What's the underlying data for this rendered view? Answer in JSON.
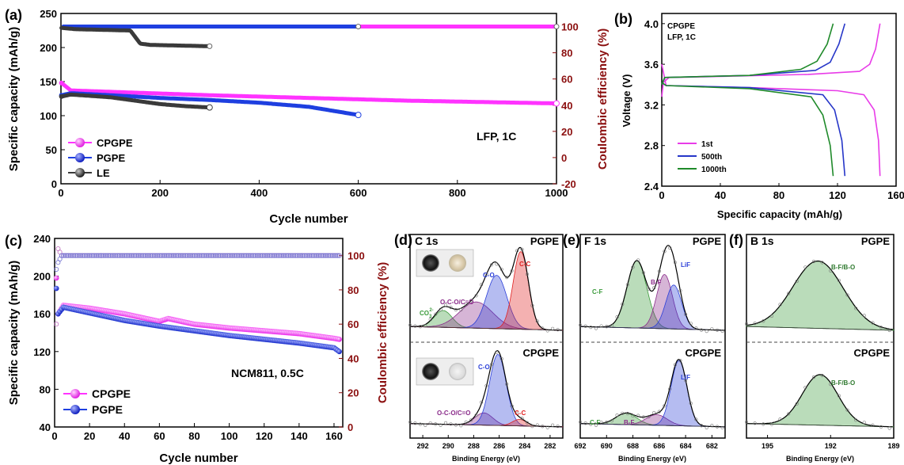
{
  "colors": {
    "cpgpe": "#ff33ff",
    "pgpe": "#1e3fe0",
    "le": "#3a3a3a",
    "right_axis": "#8b0f0f",
    "charge_1st": "#e83ce8",
    "charge_500th": "#2636c8",
    "charge_1000th": "#1f8a2a",
    "xps_green": "#3a9a3a",
    "xps_blue": "#2b3fd8",
    "xps_red": "#e02020",
    "xps_purple": "#8a2b8a"
  },
  "panels": {
    "a": {
      "label": "(a)",
      "xlabel": "Cycle number",
      "ylabel": "Specific capacity (mAh/g)",
      "y2label": "Coulombic efficiency (%)",
      "annotation": "LFP, 1C",
      "xticks": [
        "0",
        "200",
        "400",
        "600",
        "800",
        "1000"
      ],
      "yticks": [
        "0",
        "50",
        "100",
        "150",
        "200",
        "250"
      ],
      "y2ticks": [
        "-20",
        "0",
        "20",
        "40",
        "60",
        "80",
        "100"
      ],
      "legend": [
        "CPGPE",
        "PGPE",
        "LE"
      ]
    },
    "b": {
      "label": "(b)",
      "xlabel": "Specific capacity (mAh/g)",
      "ylabel": "Voltage (V)",
      "annotation_line1": "CPGPE",
      "annotation_line2": "LFP, 1C",
      "xticks": [
        "0",
        "40",
        "80",
        "120",
        "160"
      ],
      "yticks": [
        "2.4",
        "2.8",
        "3.2",
        "3.6",
        "4.0"
      ],
      "legend": [
        "1st",
        "500th",
        "1000th"
      ]
    },
    "c": {
      "label": "(c)",
      "xlabel": "Cycle number",
      "ylabel": "Specific capacity (mAh/g)",
      "y2label": "Coulombic efficiency (%)",
      "annotation": "NCM811, 0.5C",
      "xticks": [
        "0",
        "20",
        "40",
        "60",
        "80",
        "100",
        "120",
        "140",
        "160"
      ],
      "yticks": [
        "40",
        "80",
        "120",
        "160",
        "200",
        "240"
      ],
      "y2ticks": [
        "0",
        "20",
        "40",
        "60",
        "80",
        "100"
      ],
      "legend": [
        "CPGPE",
        "PGPE"
      ]
    },
    "d": {
      "label": "(d)",
      "title": "C 1s",
      "top_sample": "PGPE",
      "bottom_sample": "CPGPE",
      "xlabel": "Binding Energy (eV)",
      "xticks": [
        "292",
        "290",
        "288",
        "286",
        "284",
        "282"
      ],
      "peaks_top": [
        "CO3^2-",
        "O-C-O/C=O",
        "C-O",
        "C-C"
      ],
      "peaks_bottom": [
        "C-O",
        "O-C-O/C=O",
        "C-C"
      ],
      "co3_main": "CO",
      "co3_sub": "3",
      "co3_sup": "2-"
    },
    "e": {
      "label": "(e)",
      "title": "F 1s",
      "top_sample": "PGPE",
      "bottom_sample": "CPGPE",
      "xlabel": "Binding Energy (eV)",
      "xticks": [
        "692",
        "690",
        "688",
        "686",
        "684",
        "682"
      ],
      "peaks_top": [
        "C-F",
        "B-F",
        "LiF"
      ],
      "peaks_bottom": [
        "LiF",
        "C-F",
        "B-F"
      ]
    },
    "f": {
      "label": "(f)",
      "title": "B 1s",
      "top_sample": "PGPE",
      "bottom_sample": "CPGPE",
      "xlabel": "Binding Energy (eV)",
      "xticks": [
        "195",
        "192",
        "189"
      ],
      "peaks_top": [
        "B-F/B-O"
      ],
      "peaks_bottom": [
        "B-F/B-O"
      ]
    }
  },
  "chart_data": [
    {
      "panel": "a",
      "type": "scatter",
      "xlabel": "Cycle number",
      "ylabel": "Specific capacity (mAh/g)",
      "y2label": "Coulombic efficiency (%)",
      "xlim": [
        0,
        1000
      ],
      "ylim": [
        0,
        250
      ],
      "y2lim": [
        -20,
        110
      ],
      "series": [
        {
          "name": "CPGPE",
          "axis": "capacity",
          "x": [
            1,
            20,
            100,
            300,
            500,
            700,
            1000
          ],
          "y": [
            148,
            137,
            135,
            130,
            126,
            122,
            118
          ]
        },
        {
          "name": "PGPE",
          "axis": "capacity",
          "x": [
            1,
            20,
            100,
            200,
            300,
            400,
            500,
            600
          ],
          "y": [
            130,
            133,
            130,
            126,
            123,
            119,
            113,
            101
          ]
        },
        {
          "name": "LE",
          "axis": "capacity",
          "x": [
            1,
            20,
            100,
            150,
            200,
            250,
            300
          ],
          "y": [
            128,
            131,
            127,
            122,
            117,
            114,
            112
          ]
        },
        {
          "name": "CPGPE",
          "axis": "efficiency",
          "x": [
            600,
            1000
          ],
          "y": [
            100,
            100
          ]
        },
        {
          "name": "PGPE",
          "axis": "efficiency",
          "x": [
            5,
            600
          ],
          "y": [
            100,
            100
          ]
        },
        {
          "name": "LE",
          "axis": "efficiency",
          "x": [
            1,
            30,
            140,
            160,
            180,
            300
          ],
          "y": [
            99,
            98,
            97,
            87,
            86,
            85
          ]
        }
      ]
    },
    {
      "panel": "b",
      "type": "line",
      "xlabel": "Specific capacity (mAh/g)",
      "ylabel": "Voltage (V)",
      "xlim": [
        0,
        160
      ],
      "ylim": [
        2.4,
        4.1
      ],
      "series": [
        {
          "name": "1st",
          "charge": {
            "x": [
              0,
              1,
              5,
              40,
              100,
              135,
              142,
              146,
              149
            ],
            "y": [
              3.28,
              3.42,
              3.47,
              3.48,
              3.5,
              3.53,
              3.6,
              3.75,
              4.0
            ]
          },
          "discharge": {
            "x": [
              0,
              3,
              60,
              120,
              138,
              145,
              148,
              149
            ],
            "y": [
              3.6,
              3.39,
              3.37,
              3.34,
              3.3,
              3.15,
              2.85,
              2.5
            ]
          }
        },
        {
          "name": "500th",
          "charge": {
            "x": [
              0,
              2,
              60,
              105,
              115,
              121,
              125
            ],
            "y": [
              3.4,
              3.47,
              3.49,
              3.54,
              3.62,
              3.8,
              4.0
            ]
          },
          "discharge": {
            "x": [
              0,
              3,
              60,
              110,
              118,
              123,
              125
            ],
            "y": [
              3.42,
              3.39,
              3.37,
              3.3,
              3.15,
              2.85,
              2.5
            ]
          }
        },
        {
          "name": "1000th",
          "charge": {
            "x": [
              0,
              2,
              60,
              95,
              106,
              113,
              117
            ],
            "y": [
              3.4,
              3.47,
              3.49,
              3.55,
              3.63,
              3.8,
              4.0
            ]
          },
          "discharge": {
            "x": [
              0,
              3,
              60,
              102,
              110,
              115,
              117
            ],
            "y": [
              3.42,
              3.39,
              3.36,
              3.28,
              3.1,
              2.8,
              2.5
            ]
          }
        }
      ]
    },
    {
      "panel": "c",
      "type": "scatter",
      "xlabel": "Cycle number",
      "ylabel": "Specific capacity (mAh/g)",
      "y2label": "Coulombic efficiency (%)",
      "xlim": [
        0,
        165
      ],
      "ylim": [
        40,
        240
      ],
      "y2lim": [
        0,
        110
      ],
      "series": [
        {
          "name": "CPGPE",
          "axis": "capacity",
          "x": [
            1,
            2,
            5,
            20,
            40,
            60,
            65,
            80,
            100,
            120,
            140,
            160,
            163
          ],
          "y": [
            198,
            160,
            169,
            166,
            160,
            152,
            155,
            149,
            145,
            142,
            139,
            134,
            133
          ]
        },
        {
          "name": "PGPE",
          "axis": "capacity",
          "x": [
            1,
            2,
            5,
            20,
            40,
            60,
            80,
            100,
            120,
            140,
            160,
            163
          ],
          "y": [
            187,
            160,
            167,
            161,
            153,
            147,
            142,
            137,
            133,
            129,
            124,
            120
          ]
        },
        {
          "name": "CPGPE",
          "axis": "efficiency",
          "x": [
            1,
            2,
            4,
            163
          ],
          "y": [
            60,
            104,
            100,
            100
          ]
        },
        {
          "name": "PGPE",
          "axis": "efficiency",
          "x": [
            1,
            2,
            4,
            163
          ],
          "y": [
            92,
            96,
            100,
            100
          ]
        }
      ]
    },
    {
      "panel": "d",
      "type": "line",
      "xlabel": "Binding Energy (eV)",
      "xlim": [
        293,
        281
      ],
      "reversed": true,
      "series": [
        {
          "name": "PGPE",
          "peaks": [
            {
              "label": "CO3^2-",
              "center": 290.4,
              "height": 0.18,
              "width": 0.7
            },
            {
              "label": "O-C-O/C=O",
              "center": 287.8,
              "height": 0.28,
              "width": 1.3
            },
            {
              "label": "C-O",
              "center": 286.2,
              "height": 0.57,
              "width": 0.8
            },
            {
              "label": "C-C",
              "center": 284.3,
              "height": 0.83,
              "width": 0.6
            }
          ]
        },
        {
          "name": "CPGPE",
          "peaks": [
            {
              "label": "O-C-O/C=O",
              "center": 287.2,
              "height": 0.15,
              "width": 0.7
            },
            {
              "label": "C-O",
              "center": 286.1,
              "height": 0.87,
              "width": 0.65
            },
            {
              "label": "C-C",
              "center": 284.4,
              "height": 0.08,
              "width": 0.55
            }
          ]
        }
      ]
    },
    {
      "panel": "e",
      "type": "line",
      "xlabel": "Binding Energy (eV)",
      "xlim": [
        692,
        681
      ],
      "reversed": true,
      "series": [
        {
          "name": "PGPE",
          "peaks": [
            {
              "label": "C-F",
              "center": 687.7,
              "height": 0.72,
              "width": 0.75
            },
            {
              "label": "B-F",
              "center": 685.6,
              "height": 0.58,
              "width": 0.6
            },
            {
              "label": "LiF",
              "center": 684.9,
              "height": 0.47,
              "width": 0.6
            }
          ]
        },
        {
          "name": "CPGPE",
          "peaks": [
            {
              "label": "C-F",
              "center": 688.5,
              "height": 0.14,
              "width": 0.8
            },
            {
              "label": "B-F",
              "center": 686.2,
              "height": 0.13,
              "width": 0.8
            },
            {
              "label": "LiF",
              "center": 684.5,
              "height": 0.8,
              "width": 0.6
            }
          ]
        }
      ]
    },
    {
      "panel": "f",
      "type": "line",
      "xlabel": "Binding Energy (eV)",
      "xlim": [
        196,
        189
      ],
      "reversed": true,
      "series": [
        {
          "name": "PGPE",
          "peaks": [
            {
              "label": "B-F/B-O",
              "center": 192.6,
              "height": 0.72,
              "width": 1.2
            }
          ]
        },
        {
          "name": "CPGPE",
          "peaks": [
            {
              "label": "B-F/B-O",
              "center": 192.5,
              "height": 0.62,
              "width": 0.85
            }
          ]
        }
      ]
    }
  ]
}
